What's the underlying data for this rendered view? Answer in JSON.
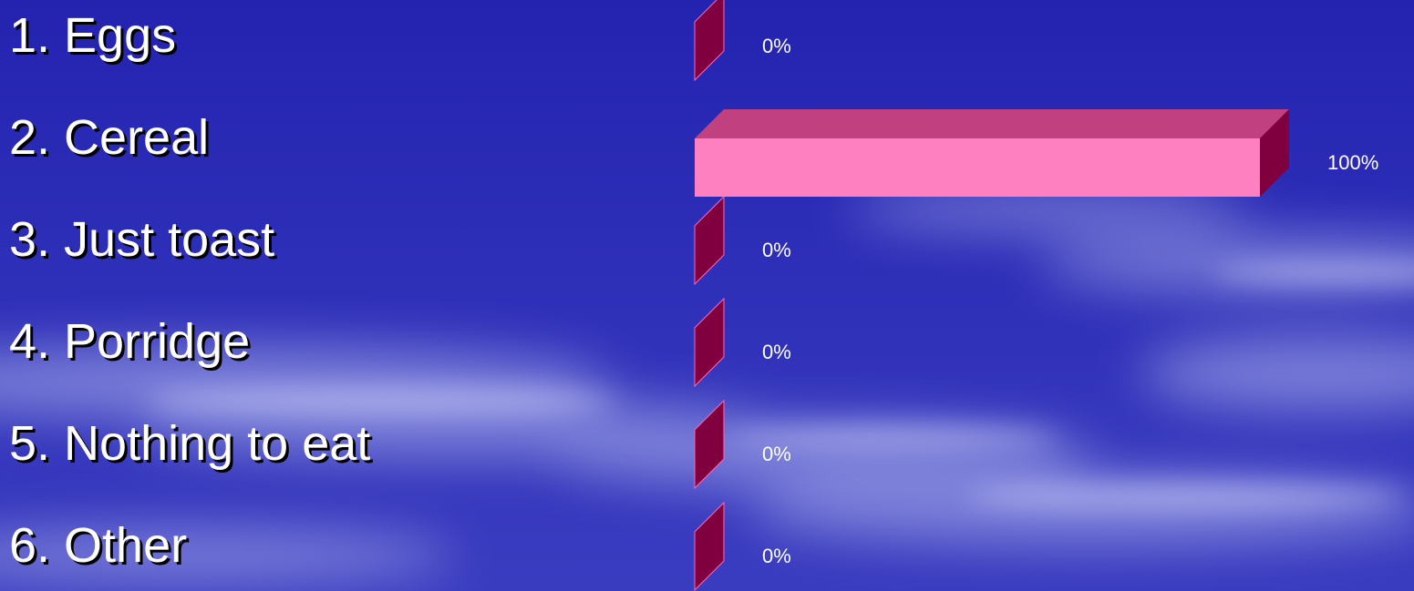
{
  "chart_data": {
    "type": "bar",
    "orientation": "horizontal",
    "categories": [
      "1. Eggs",
      "2. Cereal",
      "3. Just toast",
      "4. Porridge",
      "5. Nothing to eat",
      "6. Other"
    ],
    "values": [
      0,
      100,
      0,
      0,
      0,
      0
    ],
    "value_labels": [
      "0%",
      "100%",
      "0%",
      "0%",
      "0%",
      "0%"
    ],
    "xlim": [
      0,
      100
    ],
    "grid": false,
    "legend": "none",
    "colors": {
      "bar_front": "#ff80c0",
      "bar_top": "#c04080",
      "bar_side": "#80003f",
      "bar_edge": "#ff66b3",
      "text": "#ffffff",
      "background": "#2f2fb3"
    }
  }
}
